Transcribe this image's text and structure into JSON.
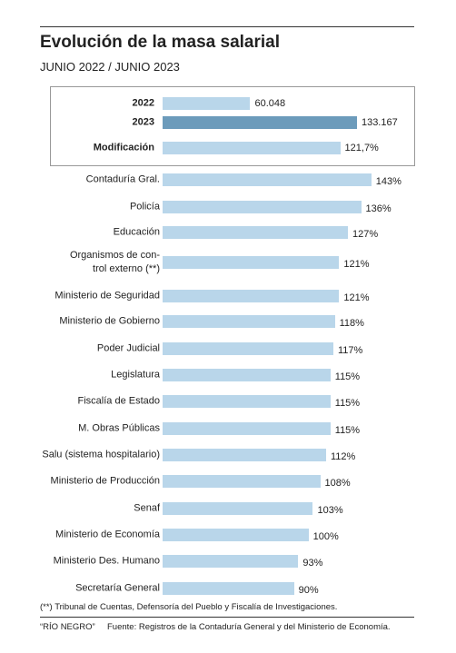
{
  "header": {
    "title": "Evolución de la masa salarial",
    "subtitle": "JUNIO 2022 / JUNIO 2023"
  },
  "chart_data": [
    {
      "type": "bar",
      "categories": [
        "2022",
        "2023"
      ],
      "values": [
        60048,
        133167
      ],
      "value_labels": [
        "60.048",
        "133.167"
      ],
      "colors": [
        "#b9d6ea",
        "#6c9bbb"
      ],
      "xlim": [
        0,
        150000
      ]
    },
    {
      "type": "bar",
      "categories": [
        "Modificación"
      ],
      "values": [
        121.7
      ],
      "value_labels": [
        "121,7%"
      ],
      "colors": [
        "#b9d6ea"
      ],
      "xlim": [
        0,
        150
      ]
    },
    {
      "type": "bar",
      "categories": [
        "Contaduría Gral.",
        "Policía",
        "Educación",
        "Organismos de con-\ntrol externo (**)",
        "Ministerio de Seguridad",
        "Ministerio de Gobierno",
        "Poder Judicial",
        "Legislatura",
        "Fiscalía de Estado",
        "M. Obras Públicas",
        "Salu (sistema hospitalario)",
        "Ministerio de Producción",
        "Senaf",
        "Ministerio de Economía",
        "Ministerio Des. Humano",
        "Secretaría General"
      ],
      "values": [
        143,
        136,
        127,
        121,
        121,
        118,
        117,
        115,
        115,
        115,
        112,
        108,
        103,
        100,
        93,
        90
      ],
      "value_labels": [
        "143%",
        "136%",
        "127%",
        "121%",
        "121%",
        "118%",
        "117%",
        "115%",
        "115%",
        "115%",
        "112%",
        "108%",
        "103%",
        "100%",
        "93%",
        "90%"
      ],
      "color": "#b9d6ea",
      "xlim": [
        0,
        150
      ]
    }
  ],
  "footer": {
    "note": "(**) Tribunal de Cuentas, Defensoría del Pueblo y Fiscalía de Investigaciones.",
    "credit": "“RÍO NEGRO”",
    "source": "Fuente: Registros de la Contaduría General y del Ministerio de Economía."
  }
}
